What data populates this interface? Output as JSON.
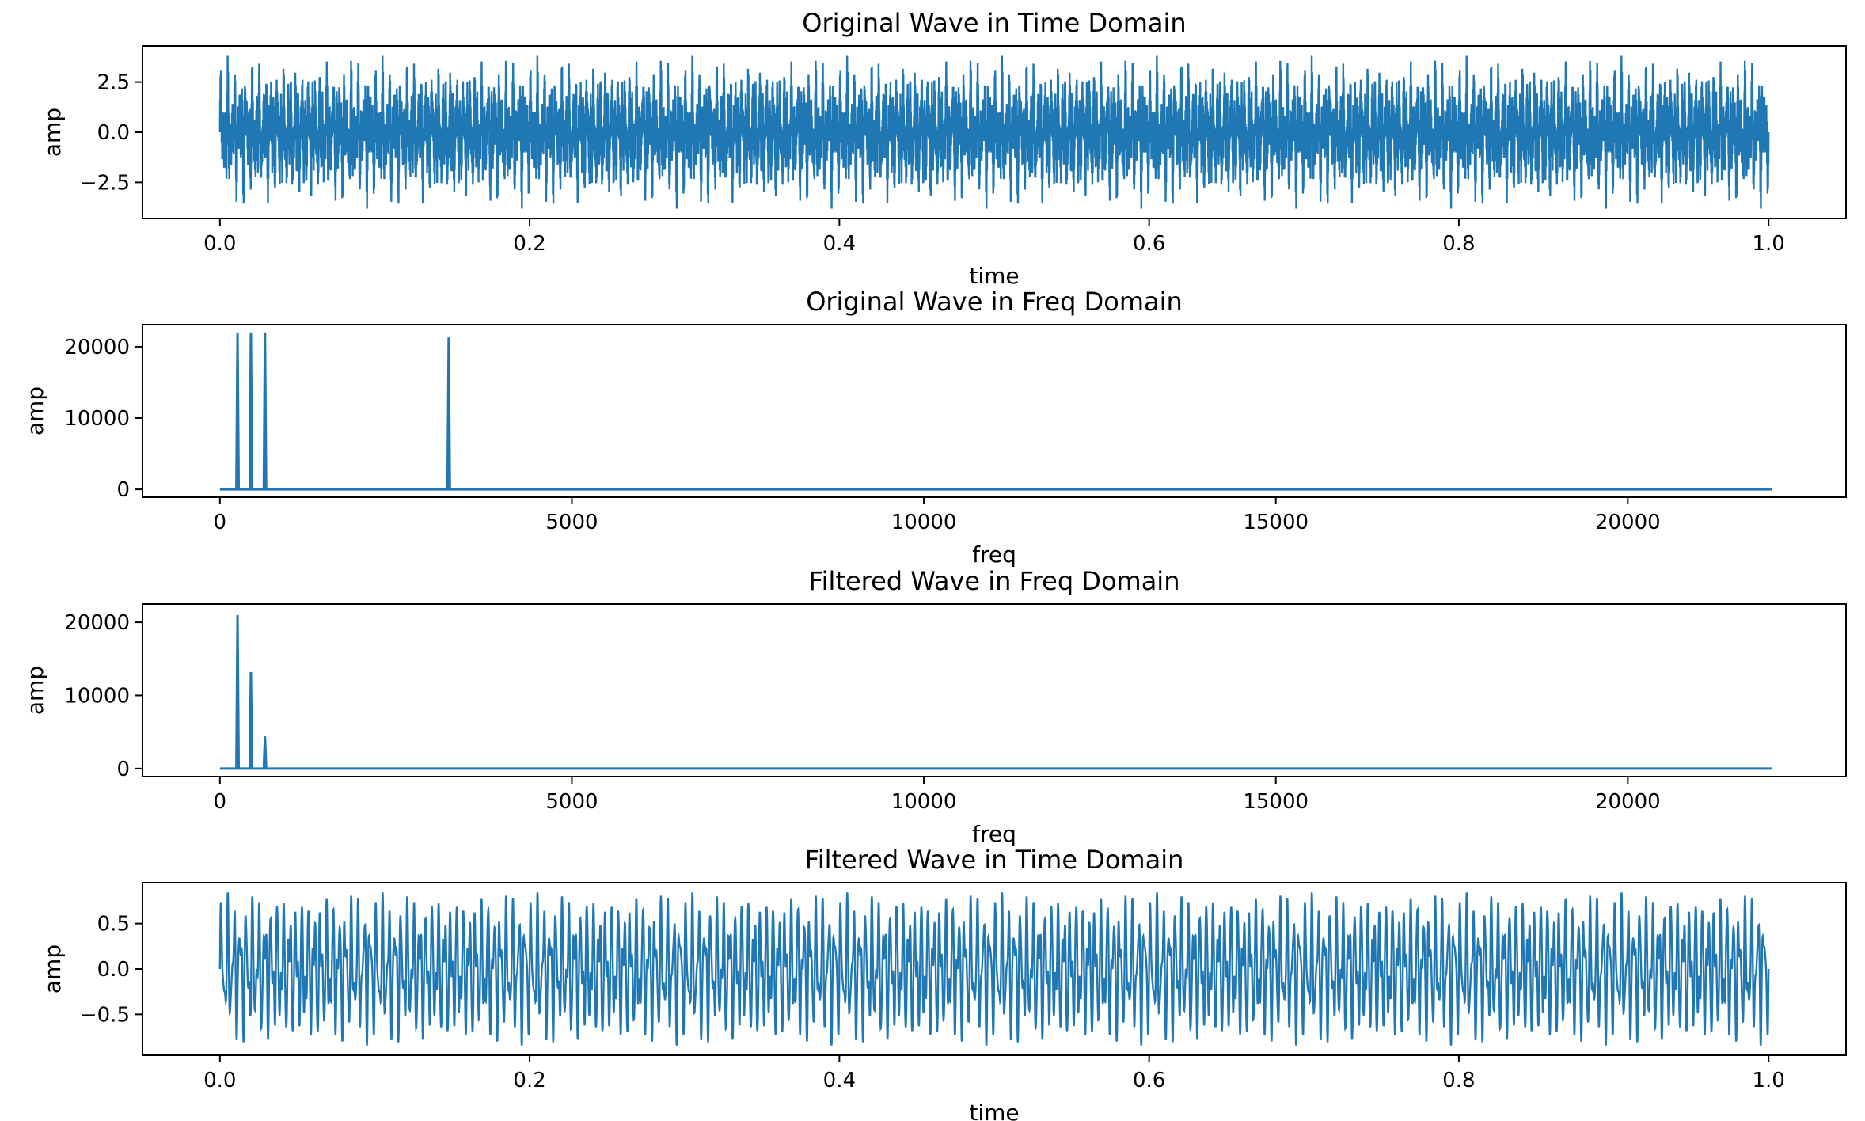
{
  "chart_data": [
    {
      "type": "line",
      "title": "Original Wave in Time Domain",
      "xlabel": "time",
      "ylabel": "amp",
      "xlim": [
        -0.05,
        1.05
      ],
      "ylim": [
        -4.3,
        4.3
      ],
      "xticks": [
        0.0,
        0.2,
        0.4,
        0.6,
        0.8,
        1.0
      ],
      "xtick_labels": [
        "0.0",
        "0.2",
        "0.4",
        "0.6",
        "0.8",
        "1.0"
      ],
      "yticks": [
        2.5,
        0.0,
        -2.5
      ],
      "ytick_labels": [
        "2.5",
        "0.0",
        "−2.5"
      ],
      "color": "#1f77b4",
      "signal": {
        "components": [
          {
            "freq_hz": 250,
            "amplitude": 1.0
          },
          {
            "freq_hz": 440,
            "amplitude": 1.0
          },
          {
            "freq_hz": 640,
            "amplitude": 1.0
          },
          {
            "freq_hz": 3250,
            "amplitude": 1.0
          }
        ],
        "t_range": [
          0.0,
          1.0
        ],
        "peak_amplitude": 3.9
      }
    },
    {
      "type": "line",
      "title": "Original Wave in Freq Domain",
      "xlabel": "freq",
      "ylabel": "amp",
      "xlim": [
        -1100,
        23100
      ],
      "ylim": [
        -1100,
        23100
      ],
      "xticks": [
        0,
        5000,
        10000,
        15000,
        20000
      ],
      "xtick_labels": [
        "0",
        "5000",
        "10000",
        "15000",
        "20000"
      ],
      "yticks": [
        20000,
        10000,
        0
      ],
      "ytick_labels": [
        "20000",
        "10000",
        "0"
      ],
      "color": "#1f77b4",
      "x_range": [
        0,
        22050
      ],
      "baseline": 0,
      "peaks": [
        {
          "freq": 250,
          "amp": 22000
        },
        {
          "freq": 440,
          "amp": 22000
        },
        {
          "freq": 640,
          "amp": 22000
        },
        {
          "freq": 3250,
          "amp": 21300
        }
      ]
    },
    {
      "type": "line",
      "title": "Filtered Wave in Freq Domain",
      "xlabel": "freq",
      "ylabel": "amp",
      "xlim": [
        -1100,
        23100
      ],
      "ylim": [
        -1100,
        22500
      ],
      "xticks": [
        0,
        5000,
        10000,
        15000,
        20000
      ],
      "xtick_labels": [
        "0",
        "5000",
        "10000",
        "15000",
        "20000"
      ],
      "yticks": [
        20000,
        10000,
        0
      ],
      "ytick_labels": [
        "20000",
        "10000",
        "0"
      ],
      "color": "#1f77b4",
      "x_range": [
        0,
        22050
      ],
      "baseline": 0,
      "peaks": [
        {
          "freq": 250,
          "amp": 21000
        },
        {
          "freq": 440,
          "amp": 13200
        },
        {
          "freq": 640,
          "amp": 4400
        }
      ]
    },
    {
      "type": "line",
      "title": "Filtered Wave in Time Domain",
      "xlabel": "time",
      "ylabel": "amp",
      "xlim": [
        -0.05,
        1.05
      ],
      "ylim": [
        -0.95,
        0.95
      ],
      "xticks": [
        0.0,
        0.2,
        0.4,
        0.6,
        0.8,
        1.0
      ],
      "xtick_labels": [
        "0.0",
        "0.2",
        "0.4",
        "0.6",
        "0.8",
        "1.0"
      ],
      "yticks": [
        0.5,
        0.0,
        -0.5
      ],
      "ytick_labels": [
        "0.5",
        "0.0",
        "−0.5"
      ],
      "color": "#1f77b4",
      "signal": {
        "components": [
          {
            "freq_hz": 250,
            "amplitude": 0.45
          },
          {
            "freq_hz": 440,
            "amplitude": 0.28
          },
          {
            "freq_hz": 640,
            "amplitude": 0.09
          }
        ],
        "t_range": [
          0.0,
          1.0
        ],
        "peak_amplitude": 0.85
      }
    }
  ]
}
